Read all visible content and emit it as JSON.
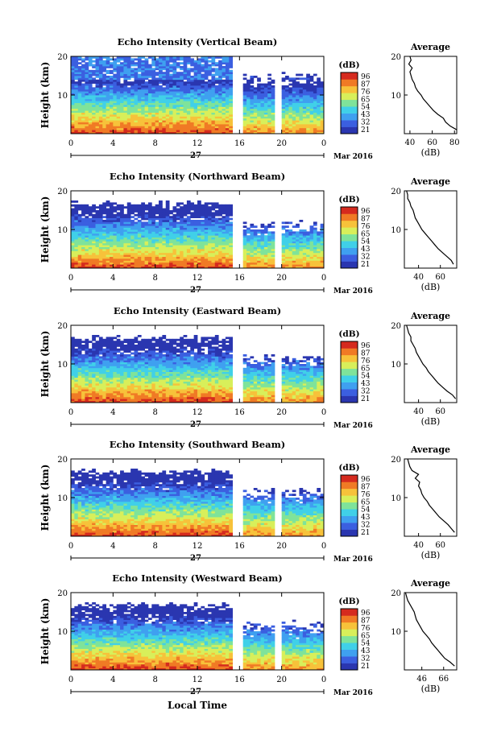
{
  "figure": {
    "xlabel": "Local Time",
    "colorbar_unit": "(dB)",
    "colorbar_ticks": [
      "96",
      "87",
      "76",
      "65",
      "54",
      "43",
      "32",
      "21"
    ],
    "colorbar_colors": [
      "#2a36b0",
      "#3b5fe0",
      "#3fa0f0",
      "#40d0e8",
      "#7fe39a",
      "#d8ef5a",
      "#f7c23a",
      "#f07a25",
      "#d52a1e"
    ],
    "time_ticks": [
      "0",
      "4",
      "8",
      "12",
      "16",
      "20",
      "0"
    ],
    "date_day": "27",
    "date_month_year": "Mar 2016",
    "ylabel": "Height (km)",
    "height_ticks": [
      "20",
      "10"
    ],
    "avg_title": "Average",
    "avg_xlabel": "(dB)"
  },
  "chart_data": [
    {
      "type": "heatmap",
      "title": "Echo Intensity (Vertical Beam)",
      "x_range_hours": [
        0,
        24
      ],
      "y_range_km": [
        0,
        20
      ],
      "data_gaps_hours": [
        [
          15.3,
          16.3
        ],
        [
          19.4,
          19.9
        ]
      ],
      "profile": {
        "type": "line",
        "xlim": [
          35,
          82
        ],
        "xticks": [
          "40",
          "60",
          "80"
        ],
        "height_km": [
          1,
          2,
          3,
          4,
          5,
          6,
          7,
          8,
          9,
          10,
          11,
          12,
          13,
          14,
          15,
          16,
          17,
          18,
          19,
          20
        ],
        "values_db": [
          82,
          76,
          72,
          70,
          65,
          61,
          58,
          55,
          52,
          50,
          47,
          45,
          44,
          42,
          41,
          40,
          42,
          39,
          41,
          40
        ]
      }
    },
    {
      "type": "heatmap",
      "title": "Echo Intensity (Northward Beam)",
      "x_range_hours": [
        0,
        24
      ],
      "y_range_km": [
        0,
        20
      ],
      "data_gaps_hours": [
        [
          15.3,
          16.3
        ],
        [
          19.4,
          19.9
        ]
      ],
      "profile": {
        "type": "line",
        "xlim": [
          27,
          75
        ],
        "xticks": [
          "40",
          "60"
        ],
        "height_km": [
          1,
          2,
          3,
          4,
          5,
          6,
          7,
          8,
          9,
          10,
          11,
          12,
          13,
          14,
          15,
          16,
          17,
          18,
          19,
          20
        ],
        "values_db": [
          72,
          70,
          66,
          62,
          58,
          55,
          52,
          49,
          46,
          43,
          41,
          39,
          37,
          36,
          35,
          33,
          32,
          30,
          30,
          29
        ]
      }
    },
    {
      "type": "heatmap",
      "title": "Echo Intensity (Eastward Beam)",
      "x_range_hours": [
        0,
        24
      ],
      "y_range_km": [
        0,
        20
      ],
      "data_gaps_hours": [
        [
          15.3,
          16.3
        ],
        [
          19.4,
          19.9
        ]
      ],
      "profile": {
        "type": "line",
        "xlim": [
          27,
          75
        ],
        "xticks": [
          "40",
          "60"
        ],
        "height_km": [
          1,
          2,
          3,
          4,
          5,
          6,
          7,
          8,
          9,
          10,
          11,
          12,
          13,
          14,
          15,
          16,
          17,
          18,
          19,
          20
        ],
        "values_db": [
          74,
          71,
          66,
          62,
          58,
          55,
          52,
          49,
          47,
          44,
          42,
          40,
          38,
          37,
          35,
          33,
          33,
          31,
          30,
          29
        ]
      }
    },
    {
      "type": "heatmap",
      "title": "Echo Intensity (Southward Beam)",
      "x_range_hours": [
        0,
        24
      ],
      "y_range_km": [
        0,
        20
      ],
      "data_gaps_hours": [
        [
          15.3,
          16.3
        ],
        [
          19.4,
          19.9
        ]
      ],
      "profile": {
        "type": "line",
        "xlim": [
          27,
          75
        ],
        "xticks": [
          "40",
          "60"
        ],
        "height_km": [
          1,
          2,
          3,
          4,
          5,
          6,
          7,
          8,
          9,
          10,
          11,
          12,
          13,
          14,
          15,
          16,
          17,
          18,
          19,
          20
        ],
        "values_db": [
          73,
          70,
          67,
          63,
          59,
          56,
          53,
          50,
          48,
          45,
          43,
          42,
          40,
          41,
          37,
          40,
          34,
          32,
          31,
          30
        ]
      }
    },
    {
      "type": "heatmap",
      "title": "Echo Intensity (Westward Beam)",
      "x_range_hours": [
        0,
        24
      ],
      "y_range_km": [
        0,
        20
      ],
      "data_gaps_hours": [
        [
          15.3,
          16.3
        ],
        [
          19.4,
          19.9
        ]
      ],
      "profile": {
        "type": "line",
        "xlim": [
          30,
          78
        ],
        "xticks": [
          "46",
          "66"
        ],
        "height_km": [
          1,
          2,
          3,
          4,
          5,
          6,
          7,
          8,
          9,
          10,
          11,
          12,
          13,
          14,
          15,
          16,
          17,
          18,
          19,
          20
        ],
        "values_db": [
          76,
          72,
          67,
          64,
          61,
          58,
          55,
          53,
          50,
          47,
          45,
          43,
          41,
          40,
          39,
          37,
          35,
          33,
          32,
          31
        ]
      }
    }
  ]
}
